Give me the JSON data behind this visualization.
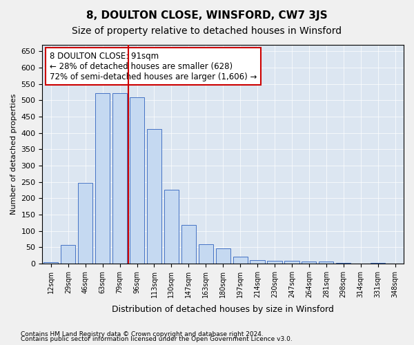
{
  "title": "8, DOULTON CLOSE, WINSFORD, CW7 3JS",
  "subtitle": "Size of property relative to detached houses in Winsford",
  "xlabel": "Distribution of detached houses by size in Winsford",
  "ylabel": "Number of detached properties",
  "categories": [
    "12sqm",
    "29sqm",
    "46sqm",
    "63sqm",
    "79sqm",
    "96sqm",
    "113sqm",
    "130sqm",
    "147sqm",
    "163sqm",
    "180sqm",
    "197sqm",
    "214sqm",
    "230sqm",
    "247sqm",
    "264sqm",
    "281sqm",
    "298sqm",
    "314sqm",
    "331sqm",
    "348sqm"
  ],
  "bar_values": [
    3,
    57,
    247,
    521,
    521,
    510,
    412,
    225,
    117,
    59,
    46,
    20,
    11,
    8,
    7,
    6,
    5,
    1,
    0,
    1,
    0
  ],
  "bar_color": "#c5d9f1",
  "bar_edge_color": "#4472c4",
  "vline_position": 4.5,
  "vline_color": "#cc0000",
  "annotation_text": "8 DOULTON CLOSE: 91sqm\n← 28% of detached houses are smaller (628)\n72% of semi-detached houses are larger (1,606) →",
  "annotation_box_color": "#ffffff",
  "annotation_box_edge": "#cc0000",
  "ylim": [
    0,
    670
  ],
  "yticks": [
    0,
    50,
    100,
    150,
    200,
    250,
    300,
    350,
    400,
    450,
    500,
    550,
    600,
    650
  ],
  "footer1": "Contains HM Land Registry data © Crown copyright and database right 2024.",
  "footer2": "Contains public sector information licensed under the Open Government Licence v3.0.",
  "plot_bg_color": "#dce6f1",
  "fig_bg_color": "#f0f0f0",
  "title_fontsize": 11,
  "subtitle_fontsize": 10
}
